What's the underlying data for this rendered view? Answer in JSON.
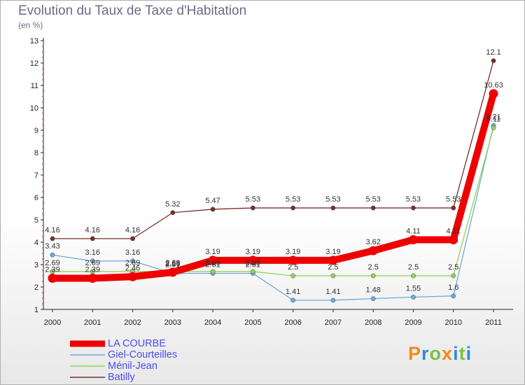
{
  "title": "Evolution du Taux de Taxe d'Habitation",
  "subtitle": "(en %)",
  "logo": {
    "p": "P",
    "r": "r",
    "o": "o",
    "x": "x",
    "i": "i",
    "t": "t",
    "i2": "i"
  },
  "chart_data": {
    "type": "line",
    "title": "Evolution du Taux de Taxe d'Habitation",
    "ylabel": "(en %)",
    "xlabel": "",
    "ylim": [
      1,
      13
    ],
    "yticks": [
      "1",
      "2",
      "3",
      "4",
      "5",
      "6",
      "7",
      "8",
      "9",
      "10",
      "11",
      "12",
      "13"
    ],
    "categories": [
      "2000",
      "2001",
      "2002",
      "2003",
      "2004",
      "2005",
      "2006",
      "2007",
      "2008",
      "2009",
      "2010",
      "2011"
    ],
    "series": [
      {
        "name": "LA COURBE",
        "color": "#ee0000",
        "values": [
          2.39,
          2.39,
          2.46,
          2.66,
          3.19,
          3.19,
          3.19,
          3.19,
          3.62,
          4.11,
          4.11,
          10.63
        ],
        "labels": [
          "2.39",
          "2.39",
          "2.46",
          "2.66",
          "3.19",
          "3.19",
          "3.19",
          "3.19",
          "3.62",
          "4.11",
          "4.11",
          "10.63"
        ]
      },
      {
        "name": "Giel-Courteilles",
        "color": "#6fa8dc",
        "values": [
          3.43,
          3.16,
          3.16,
          2.61,
          2.61,
          2.61,
          1.41,
          1.41,
          1.48,
          1.55,
          1.6,
          9.21
        ],
        "labels": [
          "3.43",
          "3.16",
          "3.16",
          "2.61",
          "2.61",
          "2.61",
          "1.41",
          "1.41",
          "1.48",
          "1.55",
          "1.6",
          "9.21"
        ]
      },
      {
        "name": "Ménil-Jean",
        "color": "#8fd35a",
        "values": [
          2.69,
          2.69,
          2.69,
          2.69,
          2.69,
          2.69,
          2.5,
          2.5,
          2.5,
          2.5,
          2.5,
          9.11
        ],
        "labels": [
          "2.69",
          "2.69",
          "2.69",
          "2.69",
          "2.69",
          "2.69",
          "2.5",
          "2.5",
          "2.5",
          "2.5",
          "2.5",
          "9.11"
        ]
      },
      {
        "name": "Batilly",
        "color": "#7a2d2d",
        "values": [
          4.16,
          4.16,
          4.16,
          5.32,
          5.47,
          5.53,
          5.53,
          5.53,
          5.53,
          5.53,
          5.53,
          12.1
        ],
        "labels": [
          "4.16",
          "4.16",
          "4.16",
          "5.32",
          "5.47",
          "5.53",
          "5.53",
          "5.53",
          "5.53",
          "5.53",
          "5.53",
          "12.1"
        ]
      }
    ]
  }
}
